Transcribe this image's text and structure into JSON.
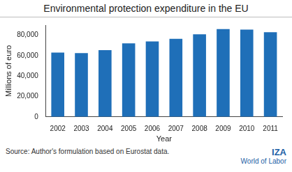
{
  "chart_data": {
    "type": "bar",
    "title": "Environmental protection expenditure in the EU",
    "x_label": "Year",
    "y_label": "Millions of euro",
    "categories": [
      "2002",
      "2003",
      "2004",
      "2005",
      "2006",
      "2007",
      "2008",
      "2009",
      "2010",
      "2011"
    ],
    "values": [
      63000,
      62500,
      65500,
      72000,
      74000,
      76500,
      81000,
      86000,
      85500,
      83000
    ],
    "color": "#1f6fb8",
    "ylim": [
      0,
      90000
    ],
    "yticks": [
      0,
      {
        "value": 20000,
        "label": "20,000"
      },
      {
        "value": 40000,
        "label": "40,000"
      },
      {
        "value": 60000,
        "label": "60,000"
      },
      {
        "value": 80000,
        "label": "80,000"
      }
    ],
    "grid": false,
    "annotations": [
      "Source: Author's formulation based on Eurostat data.",
      "IZA",
      "World of Labor"
    ]
  }
}
